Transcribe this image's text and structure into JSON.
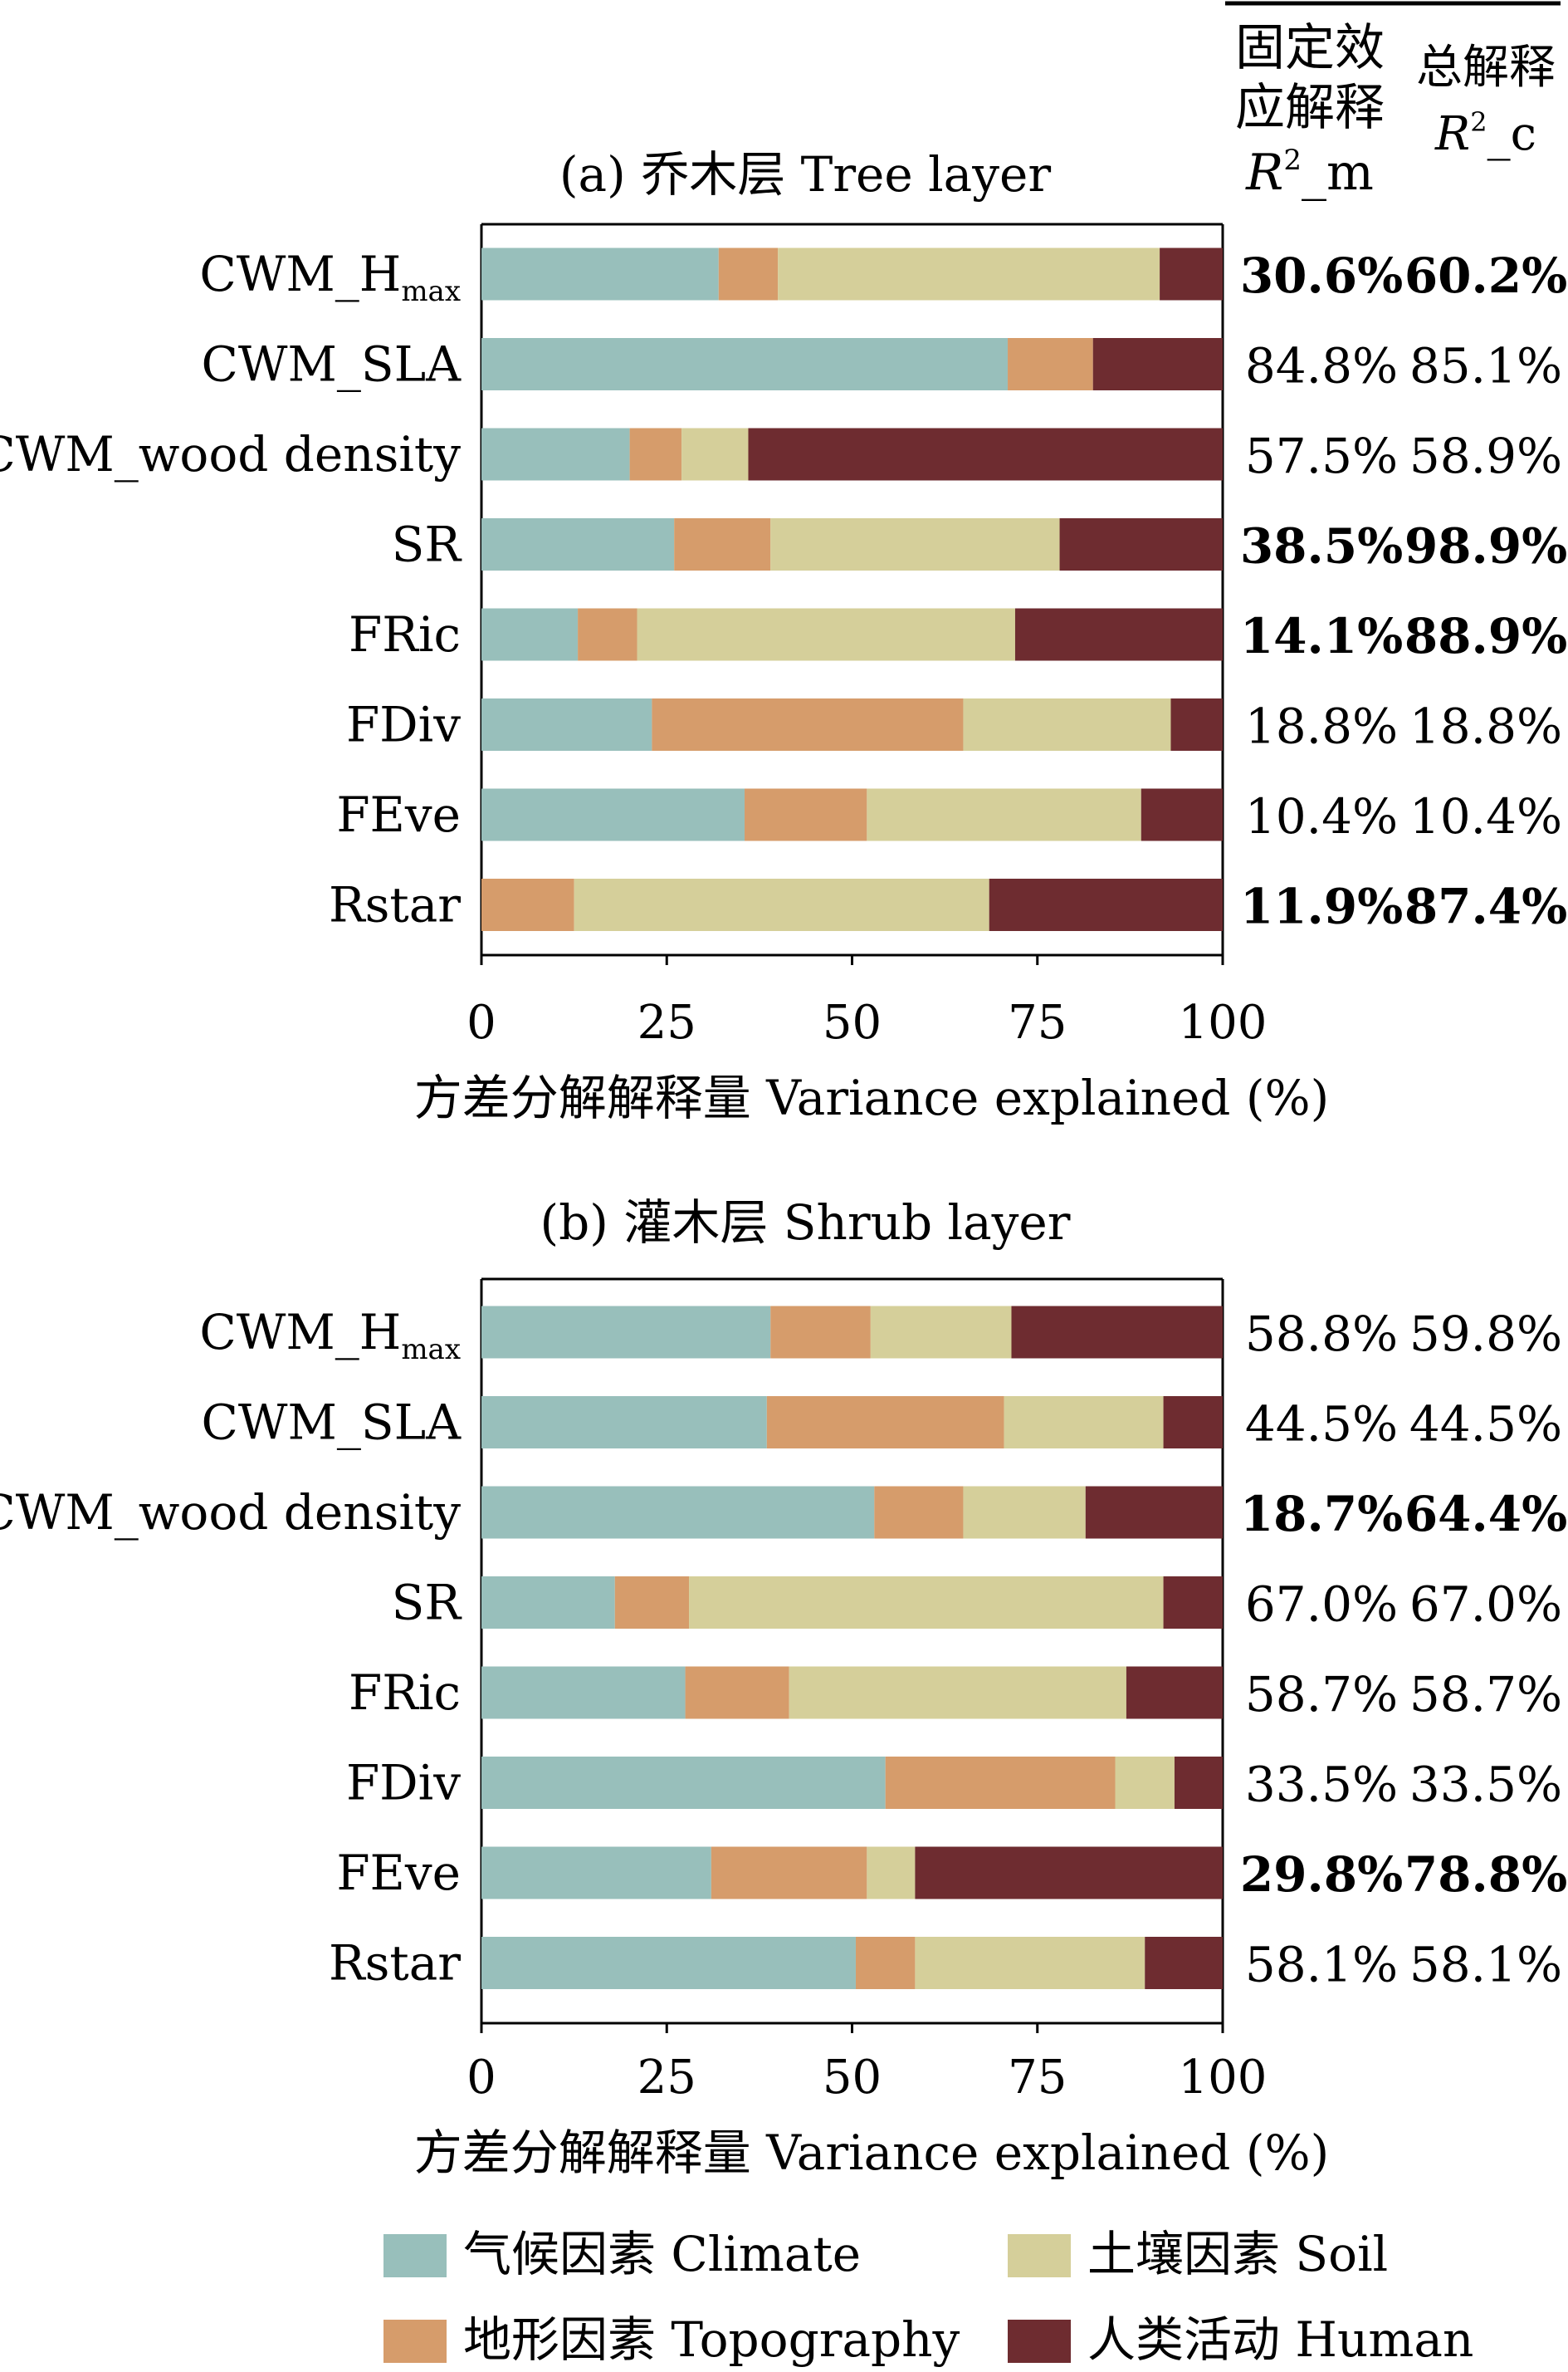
{
  "header": {
    "col_m_line1": "固定效",
    "col_m_line2": "应解释",
    "col_m_r2": "R",
    "col_m_sup": "2",
    "col_m_suffix": "_m",
    "col_c_line1": "总解释",
    "col_c_r2": "R",
    "col_c_sup": "2",
    "col_c_suffix": "_c"
  },
  "colors": {
    "Climate": "#98bfbb",
    "Topography": "#d69c6b",
    "Soil": "#d5cf9a",
    "Human": "#6e2c30"
  },
  "legend": [
    {
      "key": "Climate",
      "label": "气候因素 Climate"
    },
    {
      "key": "Soil",
      "label": "土壤因素 Soil"
    },
    {
      "key": "Topography",
      "label": "地形因素 Topography"
    },
    {
      "key": "Human",
      "label": "人类活动 Human"
    }
  ],
  "chart_data": [
    {
      "type": "bar",
      "orientation": "horizontal",
      "stacked": true,
      "title": "(a) 乔木层 Tree layer",
      "xlabel": "方差分解解释量 Variance explained (%)",
      "xlim": [
        0,
        100
      ],
      "xticks": [
        "0",
        "25",
        "50",
        "75",
        "100"
      ],
      "categories": [
        "CWM_Hmax",
        "CWM_SLA",
        "CWM_wood density",
        "SR",
        "FRic",
        "FDiv",
        "FEve",
        "Rstar"
      ],
      "series": [
        {
          "name": "Climate",
          "values": [
            32,
            71,
            20,
            26,
            13,
            23,
            35.5,
            0
          ]
        },
        {
          "name": "Topography",
          "values": [
            8,
            11.5,
            7,
            13,
            8,
            42,
            16.5,
            12.5
          ]
        },
        {
          "name": "Soil",
          "values": [
            51.5,
            0,
            9,
            39,
            51,
            28,
            37,
            56
          ]
        },
        {
          "name": "Human",
          "values": [
            8.5,
            17.5,
            64,
            22,
            28,
            7,
            11,
            31.5
          ]
        }
      ],
      "r2m": [
        "30.6%",
        "84.8%",
        "57.5%",
        "38.5%",
        "14.1%",
        "18.8%",
        "10.4%",
        "11.9%"
      ],
      "r2c": [
        "60.2%",
        "85.1%",
        "58.9%",
        "98.9%",
        "88.9%",
        "18.8%",
        "10.4%",
        "87.4%"
      ],
      "bold": [
        true,
        false,
        false,
        true,
        true,
        false,
        false,
        true
      ]
    },
    {
      "type": "bar",
      "orientation": "horizontal",
      "stacked": true,
      "title": "(b) 灌木层 Shrub layer",
      "xlabel": "方差分解解释量 Variance explained (%)",
      "xlim": [
        0,
        100
      ],
      "xticks": [
        "0",
        "25",
        "50",
        "75",
        "100"
      ],
      "categories": [
        "CWM_Hmax",
        "CWM_SLA",
        "CWM_wood density",
        "SR",
        "FRic",
        "FDiv",
        "FEve",
        "Rstar"
      ],
      "series": [
        {
          "name": "Climate",
          "values": [
            39,
            38.5,
            53,
            18,
            27.5,
            54.5,
            31,
            50.5
          ]
        },
        {
          "name": "Topography",
          "values": [
            13.5,
            32,
            12,
            10,
            14,
            31,
            21,
            8
          ]
        },
        {
          "name": "Soil",
          "values": [
            19,
            21.5,
            16.5,
            64,
            45.5,
            8,
            6.5,
            31
          ]
        },
        {
          "name": "Human",
          "values": [
            28.5,
            8,
            18.5,
            8,
            13,
            6.5,
            41.5,
            10.5
          ]
        }
      ],
      "r2m": [
        "58.8%",
        "44.5%",
        "18.7%",
        "67.0%",
        "58.7%",
        "33.5%",
        "29.8%",
        "58.1%"
      ],
      "r2c": [
        "59.8%",
        "44.5%",
        "64.4%",
        "67.0%",
        "58.7%",
        "33.5%",
        "78.8%",
        "58.1%"
      ],
      "bold": [
        false,
        false,
        true,
        false,
        false,
        false,
        true,
        false
      ]
    }
  ]
}
